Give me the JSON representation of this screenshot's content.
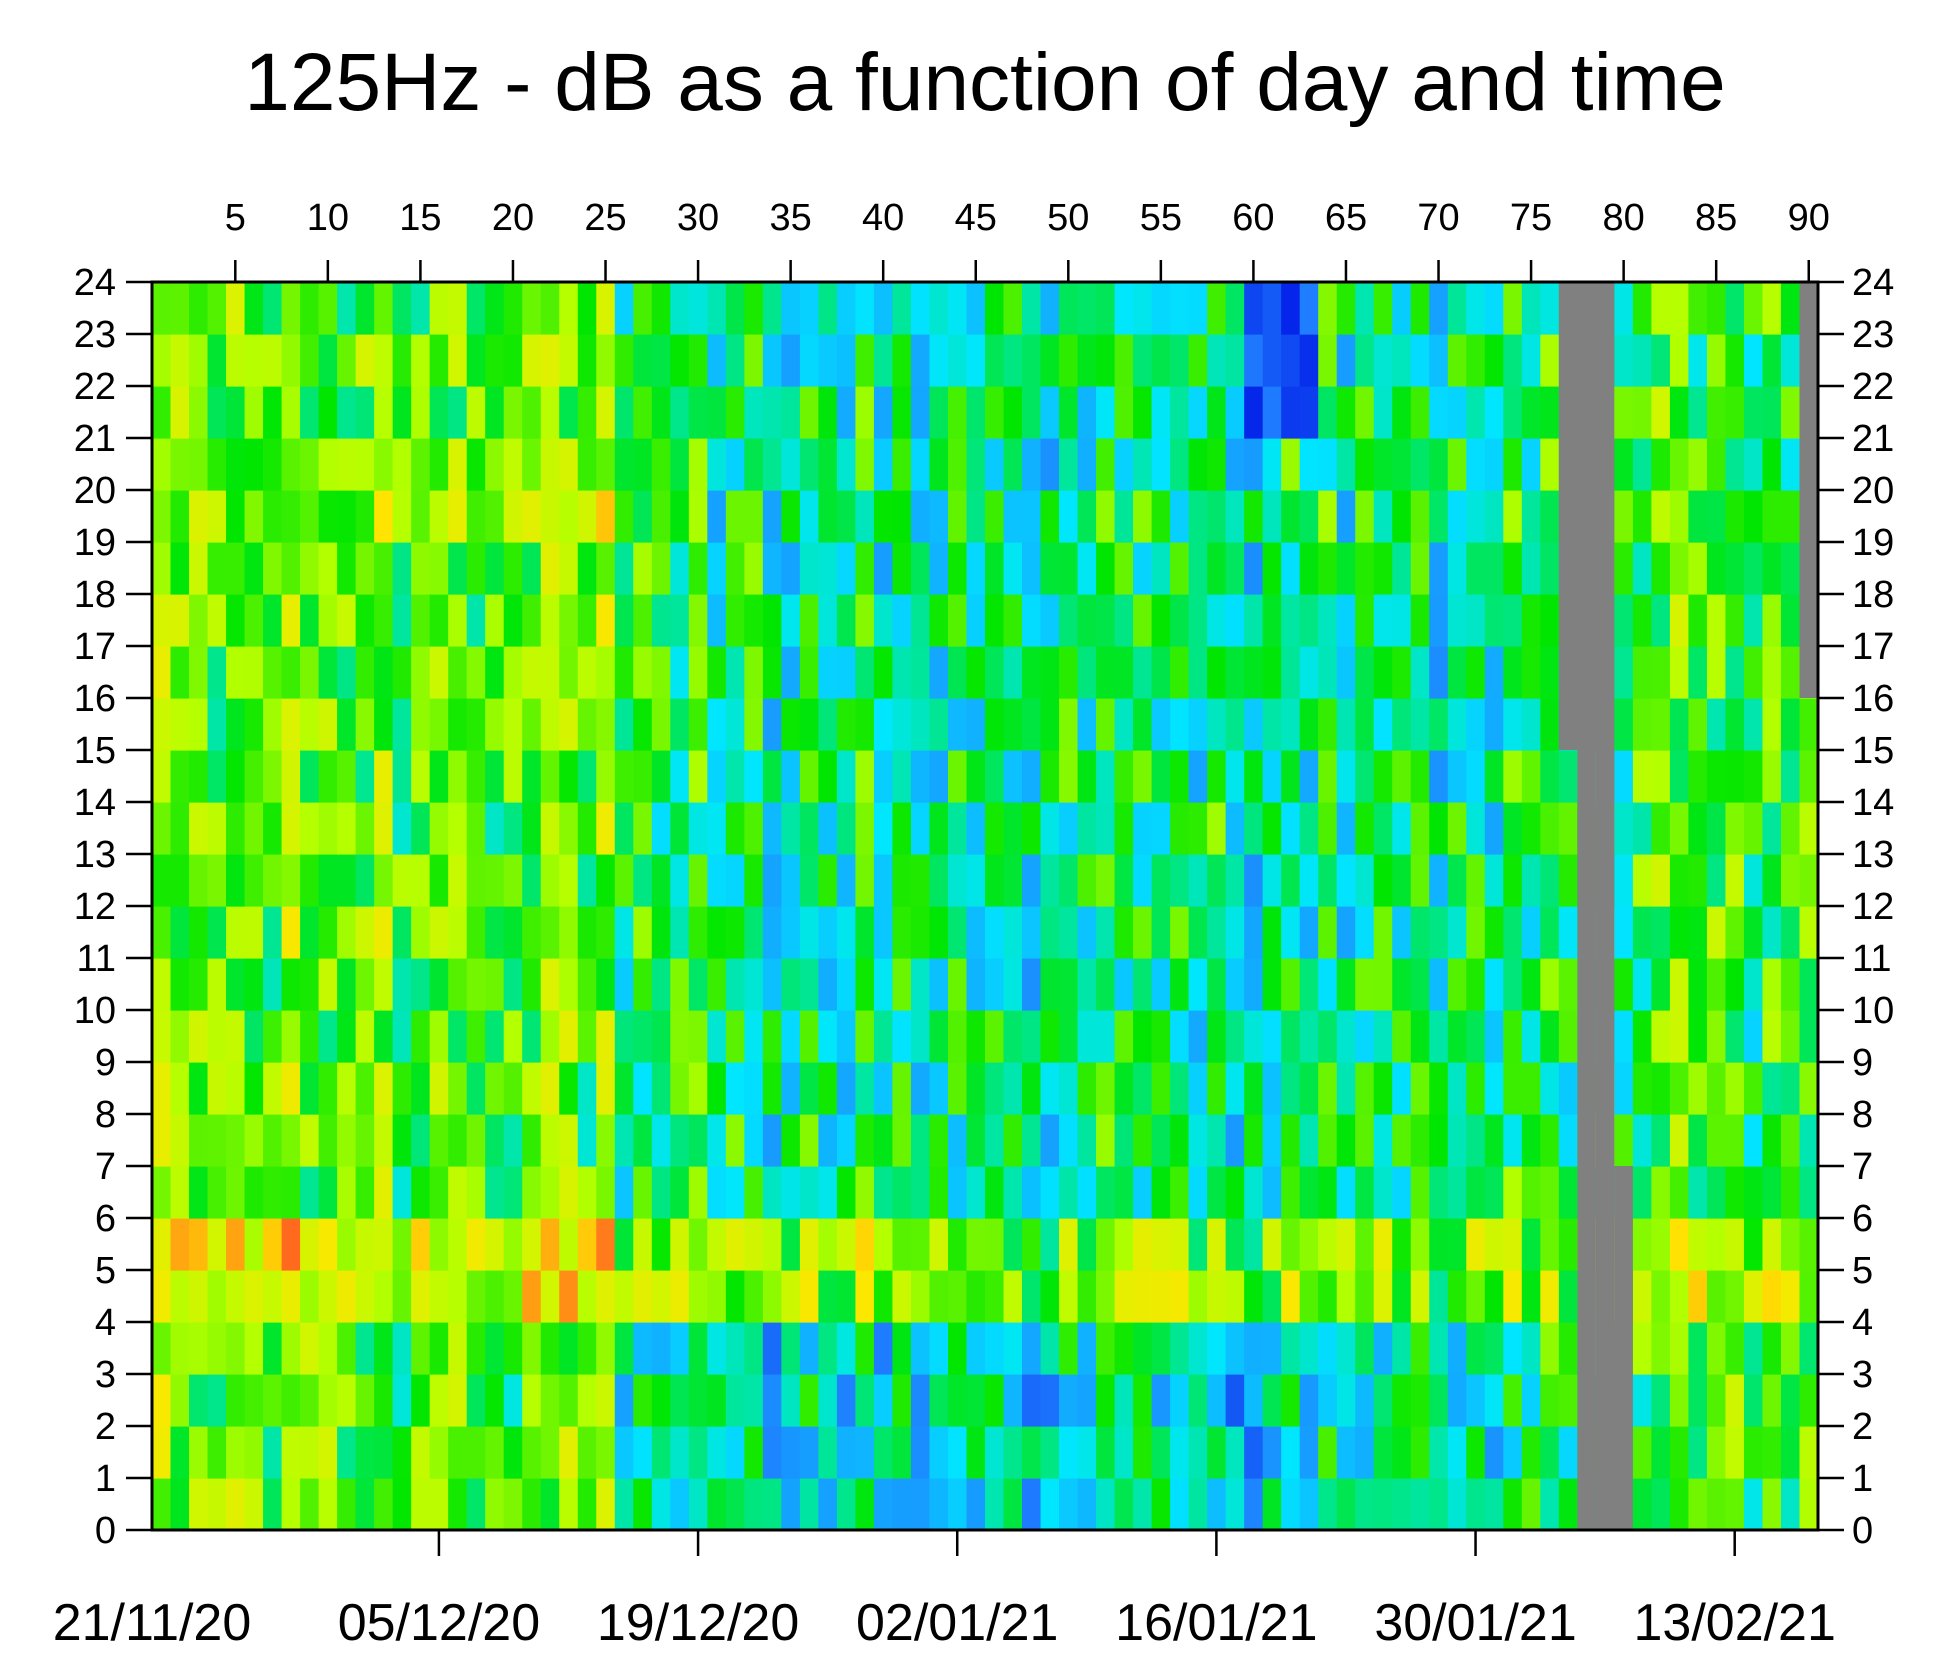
{
  "chart_data": {
    "type": "heatmap",
    "title": "125Hz - dB as a function of day and time",
    "xlabel": "",
    "ylabel": "",
    "x_range": [
      1,
      90
    ],
    "y_range": [
      0,
      24
    ],
    "x_ticks_top": [
      5,
      10,
      15,
      20,
      25,
      30,
      35,
      40,
      45,
      50,
      55,
      60,
      65,
      70,
      75,
      80,
      85,
      90
    ],
    "y_ticks": [
      0,
      1,
      2,
      3,
      4,
      5,
      6,
      7,
      8,
      9,
      10,
      11,
      12,
      13,
      14,
      15,
      16,
      17,
      18,
      19,
      20,
      21,
      22,
      23,
      24
    ],
    "date_ticks": [
      {
        "day": 16,
        "label": "05/12/20"
      },
      {
        "day": 30,
        "label": "19/12/20"
      },
      {
        "day": 44,
        "label": "02/01/21"
      },
      {
        "day": 58,
        "label": "16/01/21"
      },
      {
        "day": 72,
        "label": "30/01/21"
      },
      {
        "day": 86,
        "label": "13/02/21"
      }
    ],
    "date_start_label": "21/11/20",
    "colormap": [
      "#0015e6",
      "#1f7fff",
      "#00e6ff",
      "#00e600",
      "#b4ff00",
      "#ffe600",
      "#ff6a1f"
    ],
    "missing_color": "#808080",
    "missing_data": [
      {
        "days": [
          77,
          79
        ],
        "hours": [
          15,
          24
        ]
      },
      {
        "days": [
          78,
          78
        ],
        "hours": [
          0,
          24
        ]
      },
      {
        "days": [
          79,
          79
        ],
        "hours": [
          4,
          15
        ]
      },
      {
        "days": [
          79,
          80
        ],
        "hours": [
          0,
          4
        ]
      },
      {
        "days": [
          80,
          80
        ],
        "hours": [
          4,
          7
        ]
      },
      {
        "days": [
          90,
          90
        ],
        "hours": [
          16,
          24
        ]
      }
    ],
    "features": {
      "warm_hour_band": {
        "hours": [
          4.5,
          6
        ],
        "level": 0.78
      },
      "warm_day_block": {
        "days": [
          1,
          25
        ],
        "level": 0.58
      },
      "cool_day_block": {
        "days": [
          26,
          75
        ],
        "level": 0.42
      },
      "very_low_patch": {
        "days": [
          60,
          63
        ],
        "hours": [
          21,
          24
        ],
        "level": 0.02
      }
    }
  }
}
